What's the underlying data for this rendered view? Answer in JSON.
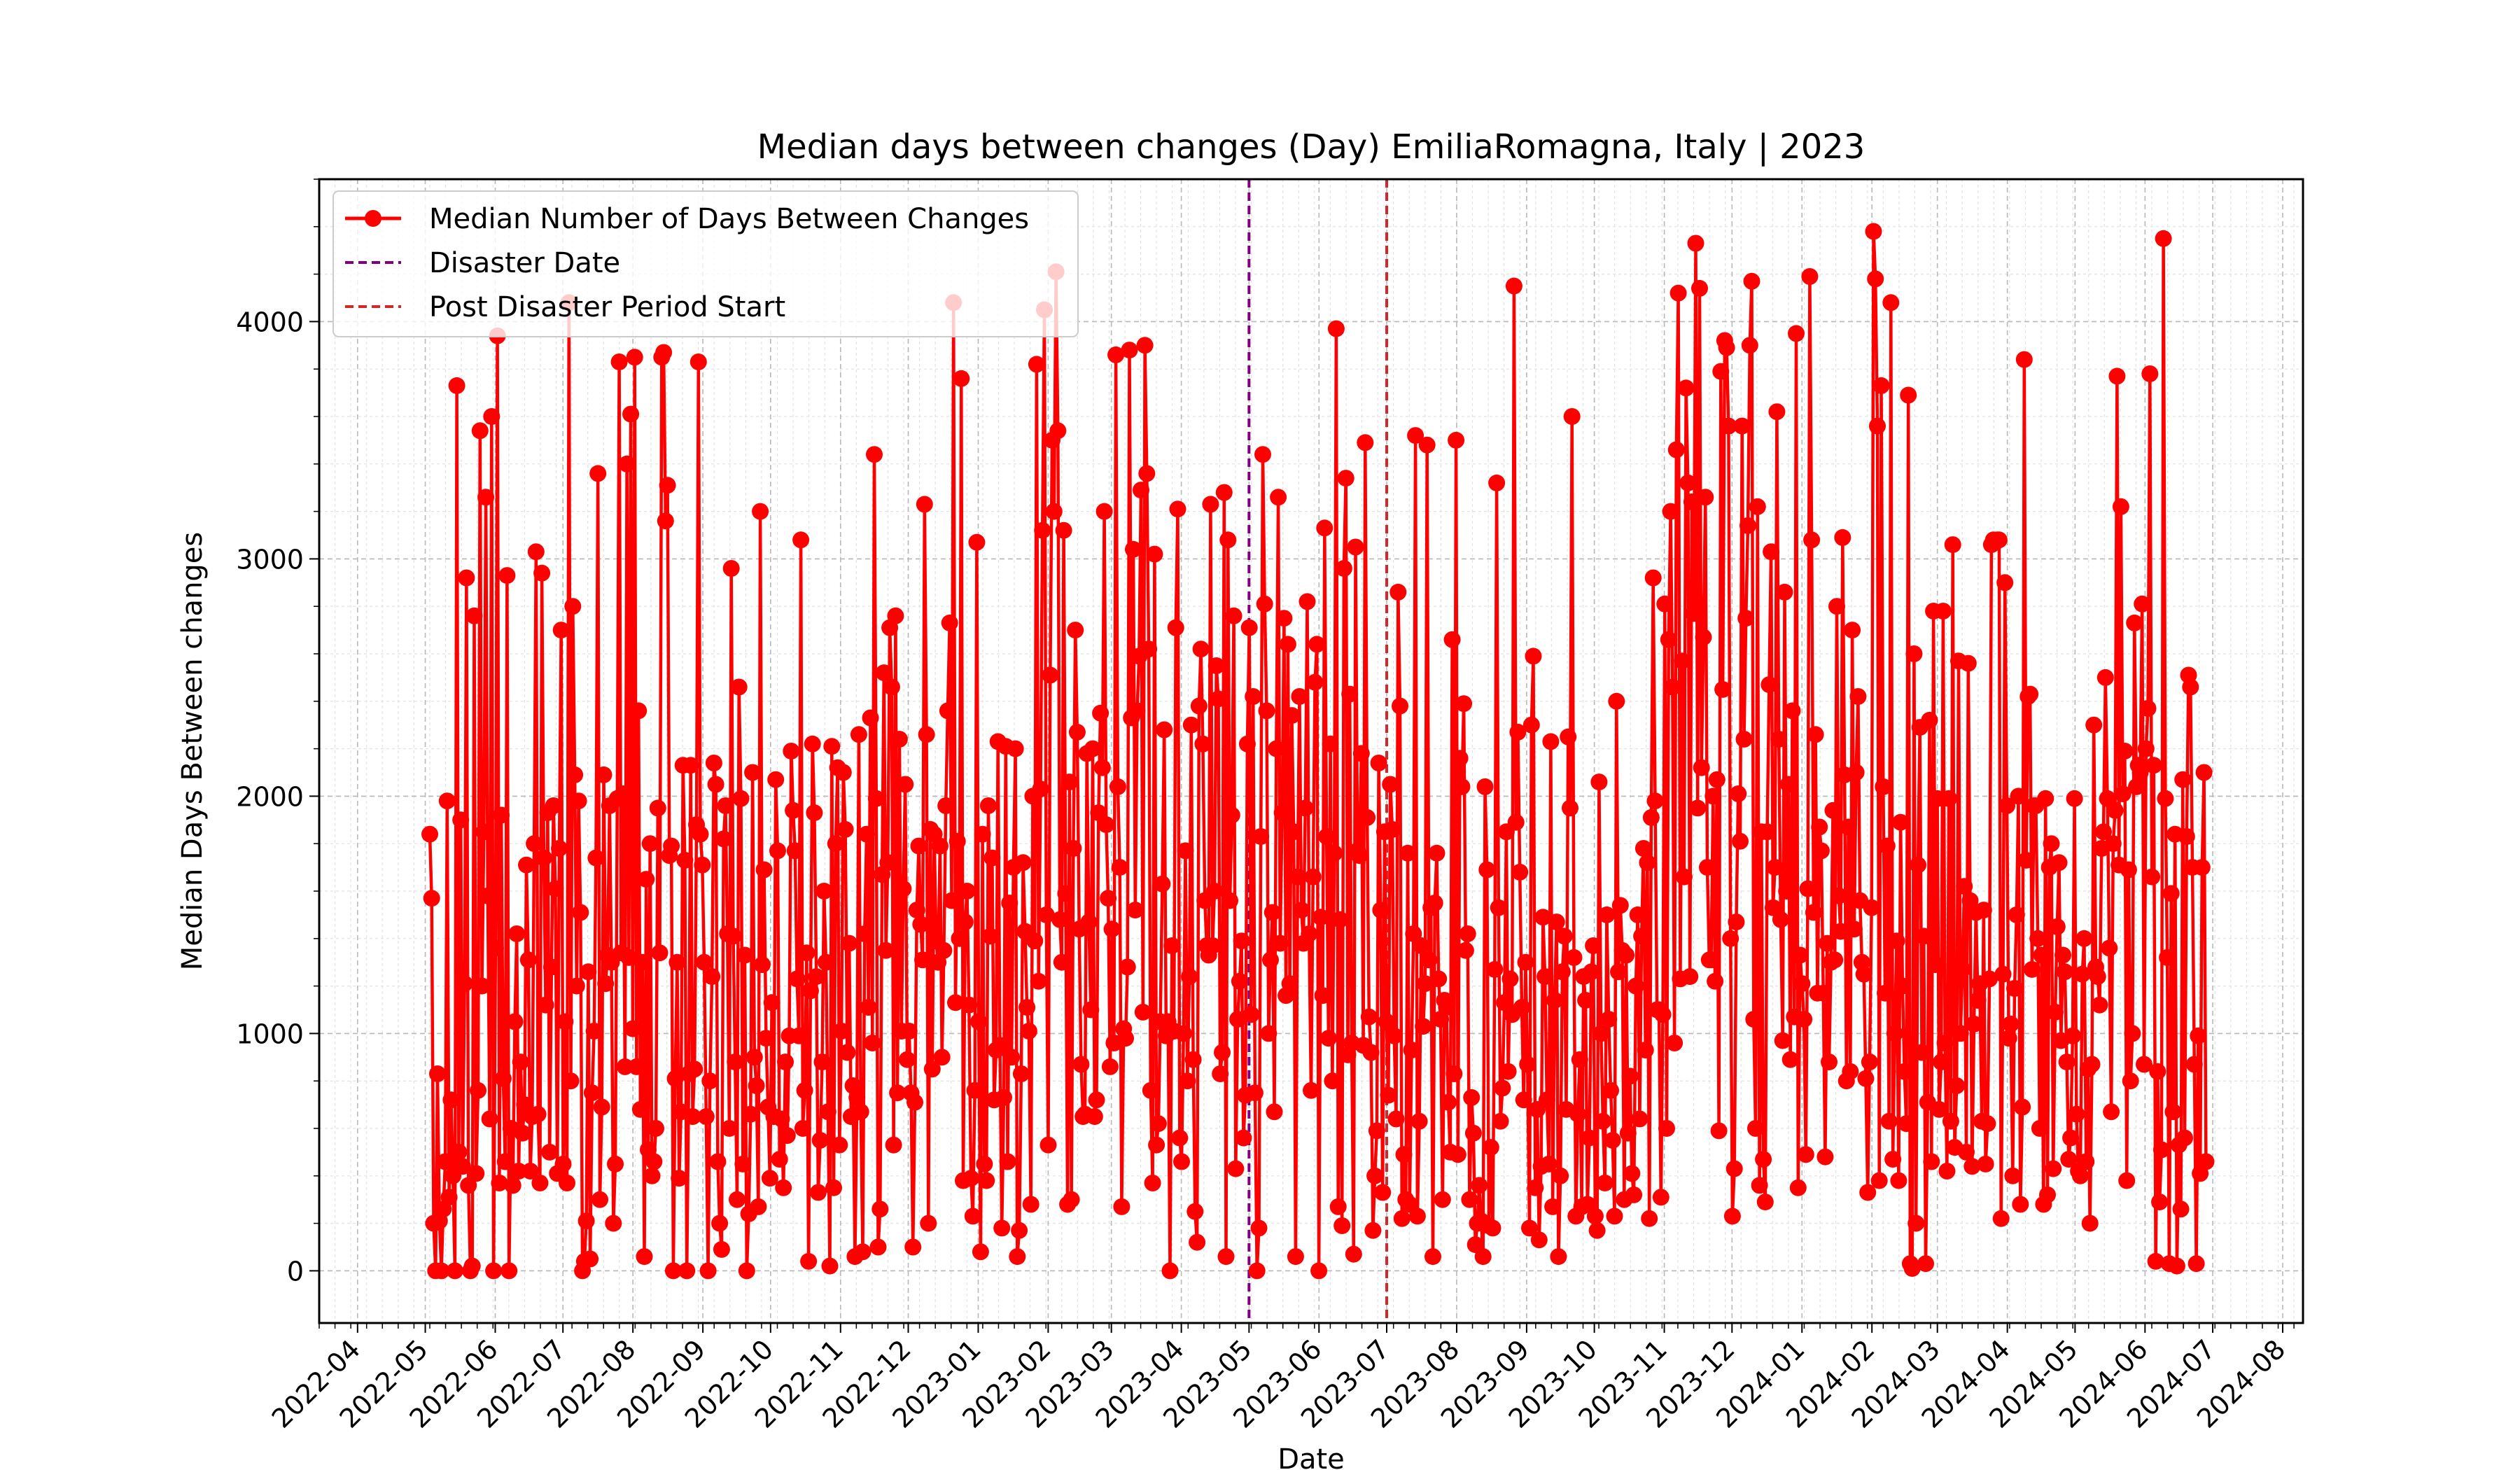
{
  "chart_data": {
    "type": "line",
    "title": "Median days between changes (Day) EmiliaRomagna, Italy | 2023",
    "xlabel": "Date",
    "ylabel": "Median Days Between changes",
    "x_ticks": [
      "2022-04",
      "2022-05",
      "2022-06",
      "2022-07",
      "2022-08",
      "2022-09",
      "2022-10",
      "2022-11",
      "2022-12",
      "2023-01",
      "2023-02",
      "2023-03",
      "2023-04",
      "2023-05",
      "2023-06",
      "2023-07",
      "2023-08",
      "2023-09",
      "2023-10",
      "2023-11",
      "2023-12",
      "2024-01",
      "2024-02",
      "2024-03",
      "2024-04",
      "2024-05",
      "2024-06",
      "2024-07",
      "2024-08"
    ],
    "y_ticks": [
      0,
      1000,
      2000,
      3000,
      4000
    ],
    "xlim": [
      "2022-03-15",
      "2024-08-10"
    ],
    "ylim": [
      -220,
      4600
    ],
    "grid": true,
    "legend_position": "top-left",
    "legend": [
      {
        "label": "Median Number of Days Between Changes",
        "color": "#ff0000",
        "style": "line-marker"
      },
      {
        "label": "Disaster Date",
        "color": "#800080",
        "style": "dashed"
      },
      {
        "label": "Post Disaster Period Start",
        "color": "#d62728",
        "style": "dashed"
      }
    ],
    "vlines": [
      {
        "name": "Disaster Date",
        "date": "2023-05-01",
        "color": "#800080"
      },
      {
        "name": "Post Disaster Period Start",
        "date": "2023-07-01",
        "color": "#d62728"
      }
    ],
    "series": [
      {
        "name": "Median Number of Days Between Changes",
        "color": "#ff0000",
        "x_start": "2022-05-03",
        "x_end": "2024-06-28",
        "values": [
          1840,
          1570,
          200,
          0,
          830,
          210,
          0,
          260,
          460,
          1980,
          310,
          720,
          400,
          0,
          3730,
          500,
          1900,
          440,
          1210,
          2920,
          360,
          0,
          20,
          2760,
          410,
          760,
          3540,
          1200,
          1850,
          3260,
          1580,
          640,
          3600,
          0,
          1360,
          3940,
          370,
          1920,
          810,
          460,
          2930,
          0,
          600,
          360,
          1050,
          1420,
          420,
          880,
          580,
          700,
          1710,
          1310,
          420,
          650,
          1800,
          3030,
          660,
          370,
          2940,
          1740,
          1120,
          1930,
          500,
          1280,
          1960,
          1610,
          410,
          1780,
          2700,
          450,
          1050,
          370,
          4080,
          800,
          2800,
          2090,
          1200,
          1980,
          1510,
          0,
          40,
          210,
          1260,
          50,
          750,
          1010,
          1740,
          3360,
          300,
          690,
          2090,
          1210,
          1330,
          1960,
          1300,
          200,
          450,
          1990,
          3830,
          1340,
          2010,
          860,
          3400,
          1320,
          3610,
          1020,
          3850,
          860,
          2360,
          680,
          1300,
          60,
          1650,
          510,
          1800,
          400,
          460,
          600,
          1950,
          1340,
          3850,
          3870,
          3160,
          3310,
          1750,
          1790,
          0,
          810,
          1300,
          390,
          670,
          2130,
          1730,
          0,
          830,
          2130,
          650,
          850,
          1880,
          3830,
          1840,
          1710,
          1300,
          650,
          0,
          800,
          1240,
          2140,
          2050,
          460,
          200,
          90,
          1820,
          1960,
          1420,
          600,
          2960,
          1410,
          880,
          300,
          2460,
          1990,
          450,
          1330,
          0,
          240,
          660,
          2100,
          900,
          780,
          270,
          3200,
          1290,
          1690,
          980,
          690,
          390,
          1130,
          650,
          2070,
          1770,
          470,
          640,
          350,
          880,
          570,
          990,
          2190,
          1940,
          1770,
          1230,
          990,
          3080,
          600,
          760,
          1340,
          40,
          1180,
          2220,
          1930,
          1240,
          330,
          550,
          880,
          1600,
          1300,
          670,
          20,
          2210,
          350,
          1800,
          2120,
          530,
          1010,
          2100,
          1860,
          920,
          1380,
          650,
          780,
          60,
          730,
          2260,
          670,
          80,
          1420,
          1840,
          1110,
          2330,
          960,
          3440,
          1990,
          100,
          260,
          1670,
          2520,
          1350,
          1720,
          2710,
          2460,
          530,
          2760,
          750,
          2240,
          1010,
          1610,
          2050,
          890,
          1010,
          750,
          100,
          710,
          1520,
          1790,
          1460,
          1310,
          3230,
          2260,
          200,
          1860,
          850,
          1840,
          1390,
          1300,
          1790,
          900,
          1350,
          1960,
          2360,
          2730,
          1560,
          4080,
          1130,
          1810,
          1400,
          3760,
          380,
          1470,
          1600,
          1120,
          390,
          230,
          760,
          3070,
          1050,
          80,
          1840,
          450,
          380,
          1960,
          1410,
          1740,
          720,
          930,
          2230,
          950,
          180,
          730,
          2210,
          460,
          1550,
          900,
          1700,
          2200,
          60,
          170,
          830,
          1720,
          1430,
          1110,
          1010,
          280,
          2000,
          1390,
          3820,
          1220,
          2030,
          3120,
          4050,
          1500,
          530,
          2510,
          3500,
          3200,
          4210,
          3540,
          1480,
          1300,
          3120,
          1590,
          280,
          2060,
          300,
          1780,
          2700,
          2270,
          1440,
          870,
          650,
          660,
          2180,
          1470,
          1100,
          2200,
          650,
          720,
          1930,
          2350,
          2120,
          3200,
          1880,
          1570,
          860,
          1440,
          960,
          3860,
          2040,
          1700,
          270,
          1020,
          980,
          1280,
          3880,
          2330,
          3040,
          1520,
          2360,
          2590,
          3290,
          1090,
          3900,
          3360,
          2620,
          760,
          370,
          3020,
          530,
          620,
          1050,
          1630,
          2280,
          990,
          1050,
          0,
          1370,
          1010,
          2710,
          3210,
          560,
          460,
          1000,
          1770,
          800,
          1240,
          2300,
          890,
          250,
          120,
          2380,
          2620,
          2220,
          1560,
          1370,
          1330,
          3230,
          1370,
          1600,
          2550,
          2410,
          830,
          920,
          3280,
          60,
          3080,
          1560,
          1920,
          2760,
          430,
          1060,
          1220,
          1390,
          560,
          740,
          2220,
          2710,
          1080,
          2420,
          750,
          0,
          180,
          1830,
          3440,
          2810,
          2360,
          1000,
          1310,
          1510,
          670,
          2200,
          3260,
          1380,
          1930,
          2750,
          1160,
          2640,
          1210,
          2340,
          1850,
          60,
          1660,
          2420,
          1520,
          1380,
          1950,
          2820,
          1420,
          760,
          1660,
          2480,
          2640,
          0,
          1490,
          1160,
          3130,
          1830,
          980,
          2220,
          800,
          1760,
          3970,
          270,
          1480,
          190,
          2960,
          3340,
          910,
          2430,
          960,
          70,
          3050,
          1770,
          1750,
          2180,
          950,
          3490,
          1910,
          1070,
          920,
          170,
          400,
          590,
          2140,
          1520,
          330,
          1850,
          1050,
          740,
          2050,
          1860,
          990,
          640,
          2860,
          2380,
          220,
          490,
          300,
          1760,
          280,
          930,
          1420,
          3520,
          230,
          630,
          1370,
          1030,
          1210,
          3480,
          1310,
          1530,
          60,
          1550,
          1760,
          1230,
          1060,
          300,
          1140,
          1110,
          710,
          500,
          2660,
          830,
          3500,
          490,
          2160,
          2040,
          2390,
          1350,
          1420,
          300,
          730,
          580,
          110,
          200,
          360,
          210,
          60,
          2040,
          1690,
          190,
          520,
          180,
          1270,
          3320,
          1530,
          630,
          770,
          1130,
          1850,
          840,
          1230,
          1080,
          4150,
          1890,
          2270,
          1680,
          1110,
          720,
          1300,
          870,
          180,
          2300,
          2590,
          350,
          680,
          130,
          440,
          1490,
          1240,
          720,
          450,
          2230,
          270,
          1140,
          1470,
          60,
          400,
          1260,
          1410,
          680,
          2250,
          1950,
          3600,
          1320,
          230,
          660,
          890,
          270,
          1240,
          1140,
          280,
          560,
          1260,
          1370,
          230,
          170,
          2060,
          1000,
          630,
          370,
          1500,
          1060,
          760,
          550,
          230,
          2400,
          1260,
          1540,
          1350,
          300,
          1330,
          580,
          820,
          410,
          320,
          1200,
          1500,
          640,
          1410,
          1780,
          930,
          1720,
          220,
          1910,
          2920,
          1980,
          1100,
          1100,
          310,
          1080,
          2810,
          600,
          2660,
          3200,
          2460,
          960,
          3460,
          4120,
          1230,
          2570,
          1660,
          3720,
          3320,
          1240,
          3240,
          2770,
          4330,
          1950,
          4140,
          2120,
          2670,
          3260,
          1700,
          1310,
          1310,
          2000,
          1220,
          2070,
          590,
          3790,
          2450,
          3920,
          3890,
          3560,
          1400,
          230,
          430,
          1470,
          2010,
          1810,
          3560,
          2240,
          2750,
          3140,
          3900,
          4170,
          1060,
          600,
          3220,
          360,
          1850,
          470,
          290,
          1850,
          2470,
          3030,
          1530,
          1700,
          3620,
          2240,
          1480,
          970,
          2860,
          1600,
          2050,
          890,
          2360,
          1070,
          3950,
          350,
          1330,
          1210,
          1060,
          490,
          1610,
          4190,
          3080,
          1510,
          2260,
          1170,
          1870,
          1770,
          1170,
          480,
          1380,
          880,
          1300,
          1940,
          1310,
          2800,
          1580,
          1430,
          3090,
          2090,
          800,
          1870,
          840,
          2700,
          1440,
          2100,
          2420,
          1560,
          1300,
          1250,
          810,
          330,
          880,
          1530,
          4380,
          4180,
          3560,
          380,
          3730,
          2040,
          1170,
          1790,
          630,
          4080,
          470,
          1000,
          1390,
          380,
          1890,
          1200,
          840,
          620,
          3690,
          30,
          10,
          2600,
          200,
          1710,
          2290,
          920,
          1410,
          30,
          710,
          2320,
          460,
          2780,
          1290,
          1990,
          680,
          880,
          2780,
          960,
          420,
          1990,
          630,
          3060,
          520,
          780,
          2570,
          1000,
          1270,
          1620,
          500,
          2560,
          1560,
          440,
          1040,
          1510,
          1140,
          1210,
          630,
          1520,
          450,
          620,
          1230,
          3060,
          3080,
          3070,
          3080,
          3080,
          220,
          1250,
          2900,
          1960,
          980,
          1040,
          400,
          1190,
          1500,
          2000,
          280,
          690,
          3840,
          1730,
          2420,
          2430,
          1270,
          1960,
          1960,
          1400,
          600,
          1330,
          280,
          1990,
          320,
          1700,
          1800,
          430,
          1090,
          1450,
          1720,
          970,
          1330,
          1260,
          880,
          470,
          560,
          990,
          1990,
          660,
          420,
          400,
          1250,
          1400,
          460,
          850,
          200,
          870,
          2300,
          1280,
          1240,
          1120,
          1780,
          1850,
          2500,
          1990,
          1360,
          670,
          1800,
          1940,
          3770,
          1710,
          3220,
          2010,
          2190,
          380,
          1690,
          800,
          1000,
          2730,
          2040,
          2130,
          2100,
          2810,
          870,
          2200,
          2370,
          3780,
          1660,
          2130,
          40,
          840,
          290,
          510,
          4350,
          1990,
          1320,
          30,
          1590,
          670,
          1840,
          20,
          530,
          260,
          2070,
          560,
          1830,
          2510,
          2460,
          1700,
          870,
          30,
          990,
          410,
          1700,
          2100,
          460
        ]
      }
    ]
  }
}
